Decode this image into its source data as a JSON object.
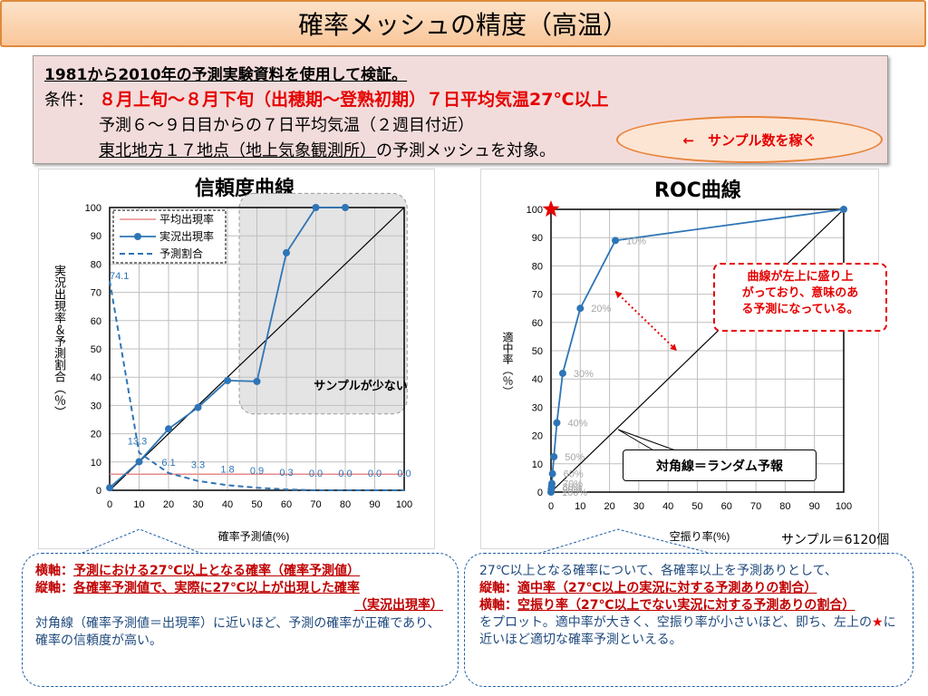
{
  "page_title": "確率メッシュの精度（高温）",
  "info": {
    "line1": "1981から2010年の予測実験資料を使用して検証。",
    "line2_label": "条件：",
    "line2_value": "８月上旬～８月下旬（出穂期～登熟初期）７日平均気温27℃以上",
    "line3": "予測６～９日目からの７日平均気温（２週目付近）",
    "line4_underlined": "東北地方１７地点（地上気象観測所）",
    "line4_rest": "の予測メッシュを対象。"
  },
  "sample_note": "←　サンプル数を稼ぐ",
  "reliability_label": "サンプルが少ない",
  "roc_callout": "曲線が左上に盛り上がっており、意味のある予測になっている。",
  "roc_callout_lines": [
    "曲線が左上に盛り上",
    "がっており、意味のあ",
    "る予測になっている。"
  ],
  "diag_callout": "対角線＝ランダム予報",
  "sample_count": "サンプル＝6120個",
  "colors": {
    "mean_line": "#e88a8a",
    "series": "#2e75b6",
    "highlight_red": "#e60000",
    "shade": "#e4e4e4"
  },
  "chart_data": [
    {
      "type": "line",
      "title": "信頼度曲線",
      "xlabel": "確率予測値(%)",
      "ylabel": "実況出現率＆予測割合（％）",
      "xlim": [
        0,
        100
      ],
      "ylim": [
        0,
        100
      ],
      "xticks": [
        "0",
        "10",
        "20",
        "30",
        "40",
        "50",
        "60",
        "70",
        "80",
        "90",
        "100"
      ],
      "yticks": [
        "0",
        "10",
        "20",
        "30",
        "40",
        "50",
        "60",
        "70",
        "80",
        "90",
        "100"
      ],
      "grid": true,
      "legend_position": "top-left",
      "legend": [
        "平均出現率",
        "実況出現率",
        "予測割合"
      ],
      "series": [
        {
          "name": "平均出現率",
          "x": [
            0,
            100
          ],
          "y": [
            5.7,
            5.7
          ]
        },
        {
          "name": "実況出現率",
          "x": [
            0,
            10,
            20,
            30,
            40,
            50,
            60,
            70,
            80
          ],
          "y": [
            0.9,
            10.1,
            21.7,
            29.3,
            38.8,
            38.5,
            84,
            100,
            100
          ]
        },
        {
          "name": "予測割合",
          "x": [
            0,
            10,
            20,
            30,
            40,
            50,
            60,
            70,
            80,
            90,
            100
          ],
          "y": [
            74.1,
            13.3,
            6.1,
            3.3,
            1.8,
            0.9,
            0.3,
            0.0,
            0.0,
            0.0,
            0.0
          ]
        }
      ],
      "data_labels": [
        "74.1",
        "13.3",
        "6.1",
        "3.3",
        "1.8",
        "0.9",
        "0.3",
        "0.0",
        "0.0",
        "0.0",
        "0.0"
      ]
    },
    {
      "type": "line",
      "title": "ROC曲線",
      "xlabel": "空振り率(%)",
      "ylabel": "適中率（％）",
      "xlim": [
        0,
        100
      ],
      "ylim": [
        0,
        100
      ],
      "xticks": [
        "0",
        "10",
        "20",
        "30",
        "40",
        "50",
        "60",
        "70",
        "80",
        "90",
        "100"
      ],
      "yticks": [
        "0",
        "10",
        "20",
        "30",
        "40",
        "50",
        "60",
        "70",
        "80",
        "90",
        "100"
      ],
      "grid": true,
      "series": [
        {
          "name": "",
          "x": [
            0,
            0.1,
            0.2,
            0.3,
            0.5,
            1,
            2,
            4,
            10,
            22,
            100
          ],
          "y": [
            0,
            1,
            2,
            3,
            6.5,
            12.5,
            24.5,
            42,
            65,
            89,
            100
          ]
        }
      ],
      "point_labels": [
        {
          "text": "10%",
          "x": 22,
          "y": 89
        },
        {
          "text": "20%",
          "x": 10,
          "y": 65
        },
        {
          "text": "30%",
          "x": 4,
          "y": 42
        },
        {
          "text": "40%",
          "x": 2,
          "y": 24.5
        },
        {
          "text": "50%",
          "x": 1,
          "y": 12.5
        },
        {
          "text": "60%",
          "x": 0.5,
          "y": 6.5
        },
        {
          "text": "70%",
          "x": 0.3,
          "y": 3
        },
        {
          "text": "80%",
          "x": 0.2,
          "y": 2
        },
        {
          "text": "90%",
          "x": 0.1,
          "y": 1
        },
        {
          "text": "100%",
          "x": 0,
          "y": 0
        }
      ]
    }
  ],
  "left_note": {
    "h_label": "横軸：",
    "h_text": "予測における27℃以上となる確率（確率予測値）",
    "v_label": "縦軸：",
    "v_text": "各確率予測値で、実際に27℃以上が出現した確率",
    "v_text2": "（実況出現率）",
    "body": "対角線（確率予測値＝出現率）に近いほど、予測の確率が正確であり、確率の信頼度が高い。"
  },
  "right_note": {
    "intro": "27℃以上となる確率について、各確率以上を予測ありとして、",
    "v_label": "縦軸：",
    "v_text": "適中率（27℃以上の実況に対する予測ありの割合）",
    "h_label": "横軸：",
    "h_text": "空振り率（27℃以上でない実況に対する予測ありの割合）",
    "body1": "をプロット。適中率が大きく、空振り率が小さいほど、即ち、左上の",
    "star": "★",
    "body2": "に近いほど適切な確率予測といえる。"
  }
}
